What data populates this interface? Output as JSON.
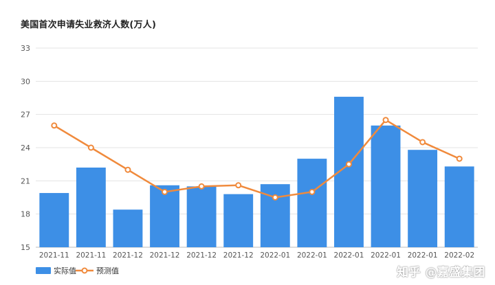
{
  "chart_data": {
    "type": "bar",
    "title": "美国首次申请失业救济人数(万人)",
    "categories": [
      "2021-11",
      "2021-11",
      "2021-12",
      "2021-12",
      "2021-12",
      "2021-12",
      "2022-01",
      "2022-01",
      "2022-01",
      "2022-01",
      "2022-01",
      "2022-02"
    ],
    "series": [
      {
        "name": "实际值",
        "type": "bar",
        "color": "#3d8fe6",
        "values": [
          19.9,
          22.2,
          18.4,
          20.6,
          20.5,
          19.8,
          20.7,
          23.0,
          28.6,
          26.0,
          23.8,
          22.3
        ]
      },
      {
        "name": "预测值",
        "type": "line",
        "color": "#f08a3c",
        "values": [
          26.0,
          24.0,
          22.0,
          20.0,
          20.5,
          20.6,
          19.5,
          20.0,
          22.5,
          26.5,
          24.5,
          23.0
        ]
      }
    ],
    "ylim": [
      15,
      33
    ],
    "yticks": [
      15,
      18,
      21,
      24,
      27,
      30,
      33
    ],
    "grid": true,
    "legend_position": "bottom-left"
  },
  "watermark": "知乎 @嘉盛集团"
}
